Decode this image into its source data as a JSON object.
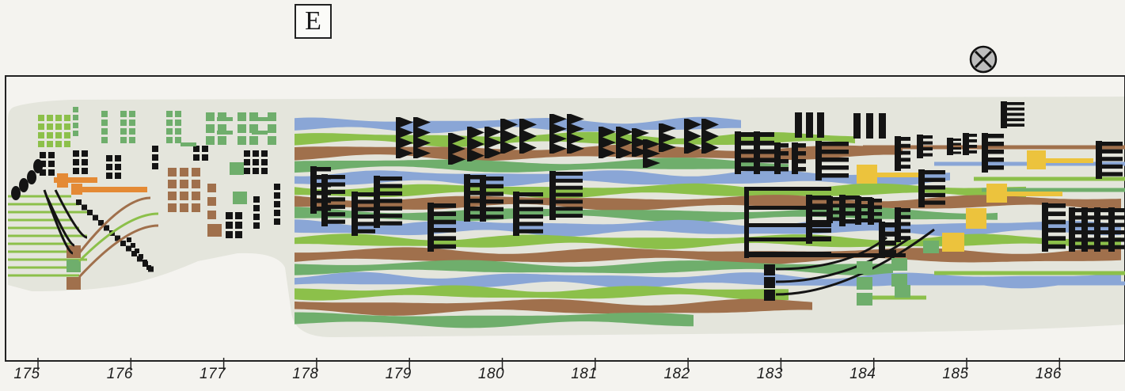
{
  "rehearsal_mark": "E",
  "cue_symbol": "circled-cross-icon",
  "colors": {
    "paper": "#f4f3ef",
    "field": "#e4e5dc",
    "frame": "#222222",
    "black": "#141414",
    "green_light": "#8cc04a",
    "green_sage": "#6fae6c",
    "blue": "#8aa6d6",
    "brown": "#a0704c",
    "orange": "#e48a35",
    "yellow": "#ecc33d"
  },
  "timeline": {
    "labels": [
      "175",
      "176",
      "177",
      "178",
      "179",
      "180",
      "181",
      "182",
      "183",
      "184",
      "185",
      "186"
    ]
  }
}
